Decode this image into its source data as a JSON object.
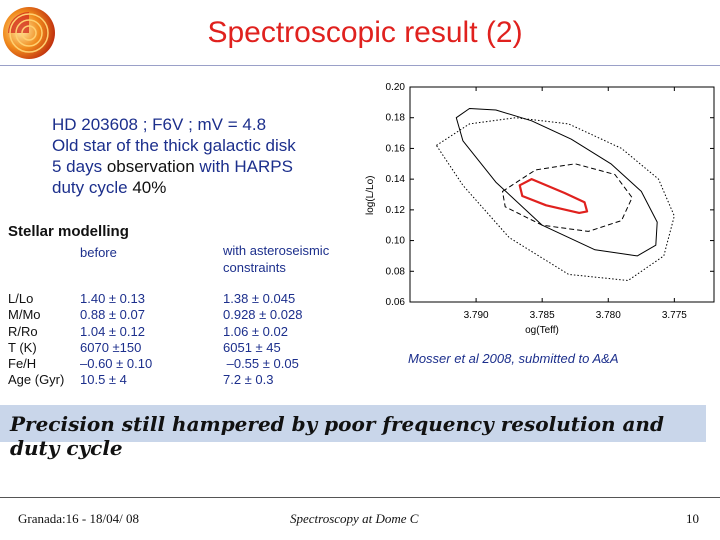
{
  "slide": {
    "title": "Spectroscopic result (2)",
    "intro": {
      "line1": "HD 203608 ; F6V ; mV = 4.8",
      "line2": "Old star of the thick galactic disk",
      "line3_pre": "5 days ",
      "line3_mid": "observation",
      "line3_post": " with HARPS",
      "line4_pre": "duty cycle ",
      "line4_val": "40%"
    },
    "modelling": {
      "heading": "Stellar modelling",
      "col_before": "before",
      "col_after": "with asteroseismic constraints",
      "labels": [
        "L/Lo",
        "M/Mo",
        "R/Ro",
        "T (K)",
        "Fe/H",
        "Age (Gyr)"
      ],
      "before": [
        "1.40 ± 0.13",
        "0.88 ± 0.07",
        "1.04 ± 0.12",
        "6070 ±150",
        "–0.60 ± 0.10",
        "10.5 ± 4"
      ],
      "after": [
        "1.38 ± 0.045",
        "0.928 ± 0.028",
        "1.06 ± 0.02",
        "6051 ± 45",
        " –0.55 ± 0.05",
        "7.2 ± 0.3"
      ]
    },
    "citation": "Mosser et al 2008, submitted to A&A",
    "precision": "Precision still hampered by poor frequency resolution and duty cycle",
    "footer": {
      "left": "Granada:16 - 18/04/ 08",
      "center": "Spectroscopy at Dome C",
      "page": "10"
    }
  },
  "chart_data": {
    "type": "scatter",
    "title": "",
    "xlabel": "og(Teff)",
    "ylabel": "log(L/Lo)",
    "xlim": [
      3.795,
      3.772
    ],
    "ylim": [
      0.06,
      0.2
    ],
    "x_ticks": [
      "3.790",
      "3.785",
      "3.780",
      "3.775"
    ],
    "y_ticks": [
      "0.20",
      "0.18",
      "0.16",
      "0.14",
      "0.12",
      "0.10",
      "0.08",
      "0.06"
    ],
    "series": [
      {
        "style": "solid-black",
        "color": "#000000",
        "x": [
          3.7915,
          3.7905,
          3.7885,
          3.7858,
          3.7828,
          3.7798,
          3.7775,
          3.7763,
          3.7764,
          3.7778,
          3.781,
          3.785,
          3.7885,
          3.791
        ],
        "y": [
          0.18,
          0.186,
          0.185,
          0.178,
          0.166,
          0.15,
          0.132,
          0.112,
          0.097,
          0.09,
          0.094,
          0.11,
          0.138,
          0.165
        ]
      },
      {
        "style": "dotted-black",
        "color": "#000000",
        "x": [
          3.793,
          3.7905,
          3.787,
          3.783,
          3.779,
          3.7762,
          3.775,
          3.7758,
          3.7785,
          3.783,
          3.7875,
          3.791
        ],
        "y": [
          0.162,
          0.176,
          0.18,
          0.176,
          0.16,
          0.14,
          0.116,
          0.09,
          0.074,
          0.078,
          0.102,
          0.136
        ]
      },
      {
        "style": "dashed-black",
        "color": "#000000",
        "x": [
          3.788,
          3.7855,
          3.7825,
          3.7795,
          3.7782,
          3.779,
          3.7815,
          3.785,
          3.7878
        ],
        "y": [
          0.132,
          0.146,
          0.15,
          0.143,
          0.128,
          0.113,
          0.106,
          0.11,
          0.122
        ]
      },
      {
        "style": "solid-red",
        "color": "#e0211e",
        "x": [
          3.7867,
          3.7858,
          3.7833,
          3.7818,
          3.7816,
          3.7822,
          3.7847,
          3.7865
        ],
        "y": [
          0.136,
          0.14,
          0.131,
          0.125,
          0.119,
          0.118,
          0.123,
          0.129
        ]
      }
    ]
  },
  "colors": {
    "title": "#e0211e",
    "text_blue": "#1c2f8c",
    "banner": "#c9d6ea",
    "best_fit": "#e0211e"
  }
}
